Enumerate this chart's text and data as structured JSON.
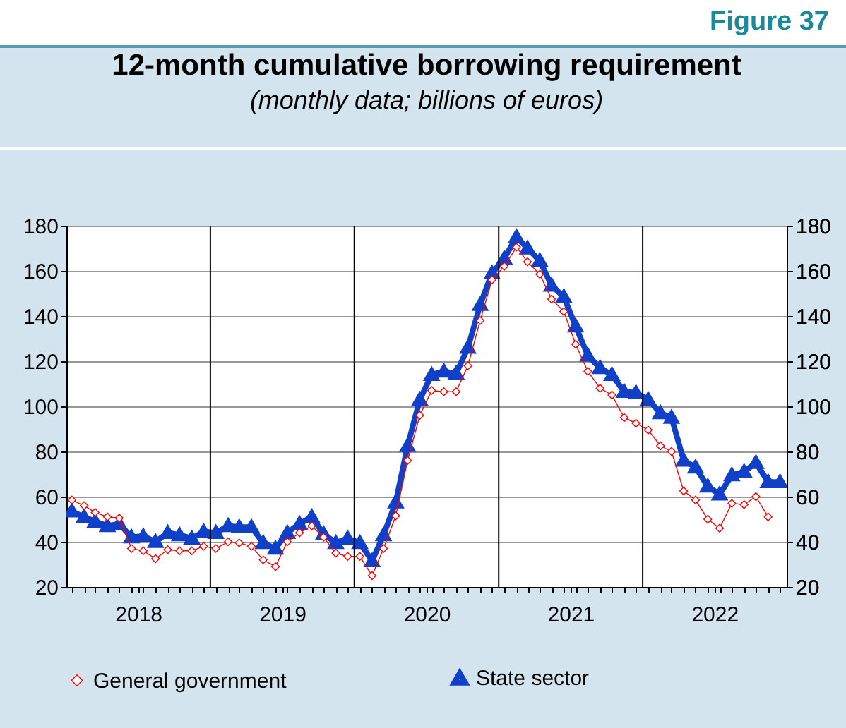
{
  "chart_data": {
    "type": "line",
    "title": "12-month cumulative borrowing requirement",
    "subtitle": "(monthly data; billions of euros)",
    "annotations": [
      "Figure 37"
    ],
    "x": [
      "2018-01-15",
      "2018-02-15",
      "2018-03-15",
      "2018-04-15",
      "2018-05-15",
      "2018-06-15",
      "2018-07-15",
      "2018-08-15",
      "2018-09-15",
      "2018-10-15",
      "2018-11-15",
      "2018-12-15",
      "2019-01-15",
      "2019-02-15",
      "2019-03-15",
      "2019-04-15",
      "2019-05-15",
      "2019-06-15",
      "2019-07-15",
      "2019-08-15",
      "2019-09-15",
      "2019-10-15",
      "2019-11-15",
      "2019-12-15",
      "2020-01-15",
      "2020-02-15",
      "2020-03-15",
      "2020-04-15",
      "2020-05-15",
      "2020-06-15",
      "2020-07-15",
      "2020-08-15",
      "2020-09-15",
      "2020-10-15",
      "2020-11-15",
      "2020-12-15",
      "2021-01-15",
      "2021-02-15",
      "2021-03-15",
      "2021-04-15",
      "2021-05-15",
      "2021-06-15",
      "2021-07-15",
      "2021-08-15",
      "2021-09-15",
      "2021-10-15",
      "2021-11-15",
      "2021-12-15",
      "2022-01-15",
      "2022-02-15",
      "2022-03-15",
      "2022-04-15",
      "2022-05-15",
      "2022-06-15",
      "2022-07-15",
      "2022-08-15",
      "2022-09-15",
      "2022-10-15",
      "2022-11-15",
      "2022-12-15"
    ],
    "series": [
      {
        "name": "General government",
        "color": "#ff0000",
        "marker": "diamond",
        "line_style": "solid",
        "values": [
          58.5,
          56,
          53,
          51,
          50.5,
          37,
          36,
          32.5,
          36.5,
          36,
          36,
          38,
          37,
          40,
          39.5,
          38,
          32,
          29,
          40,
          44,
          47,
          42,
          35,
          33.5,
          33.5,
          25,
          37,
          51.5,
          76,
          96,
          107,
          106.5,
          106.5,
          118,
          138,
          156,
          162,
          170.5,
          164,
          158.5,
          147.5,
          142,
          127.5,
          115.5,
          108,
          105,
          95,
          92.5,
          89.5,
          82.5,
          80,
          62.5,
          58.5,
          50,
          46,
          57,
          56.5,
          60,
          51,
          null
        ]
      },
      {
        "name": "State sector",
        "color": "#1040c8",
        "marker": "triangle",
        "line_style": "solid",
        "values": [
          53.5,
          51,
          49,
          47,
          48,
          42,
          42.5,
          40,
          44,
          43,
          41.5,
          44.5,
          44,
          47,
          46.5,
          46.5,
          39.5,
          37,
          44,
          48,
          51,
          43.5,
          39.5,
          41.5,
          39.5,
          31.5,
          43,
          57.5,
          82.5,
          103,
          114,
          115.5,
          114.5,
          126,
          145,
          159,
          165.5,
          175,
          170,
          164.5,
          153.5,
          148.5,
          135.5,
          122.5,
          117,
          114,
          106.5,
          106,
          103,
          97,
          95,
          76,
          73,
          64.5,
          61,
          69.5,
          71,
          75,
          66.5,
          66.5
        ]
      }
    ],
    "xlim": [
      "2018-01-01",
      "2023-01-01"
    ],
    "xticks": [
      {
        "value": "2018-07-02",
        "label": "2018"
      },
      {
        "value": "2019-07-02",
        "label": "2019"
      },
      {
        "value": "2020-07-02",
        "label": "2020"
      },
      {
        "value": "2021-07-02",
        "label": "2021"
      },
      {
        "value": "2022-07-02",
        "label": "2022"
      }
    ],
    "ylim": [
      20,
      180
    ],
    "yticks": [
      20,
      40,
      60,
      80,
      100,
      120,
      140,
      160,
      180
    ],
    "y2lim": [
      20,
      180
    ],
    "y2ticks": [
      20,
      40,
      60,
      80,
      100,
      120,
      140,
      160,
      180
    ],
    "ref_lines": [
      {
        "axis": "x",
        "value": "2019-01-01",
        "color": "#000000"
      },
      {
        "axis": "x",
        "value": "2020-01-01",
        "color": "#000000"
      },
      {
        "axis": "x",
        "value": "2021-01-01",
        "color": "#000000"
      },
      {
        "axis": "x",
        "value": "2022-01-01",
        "color": "#000000"
      }
    ],
    "grid": "y",
    "legend": "bottom"
  }
}
